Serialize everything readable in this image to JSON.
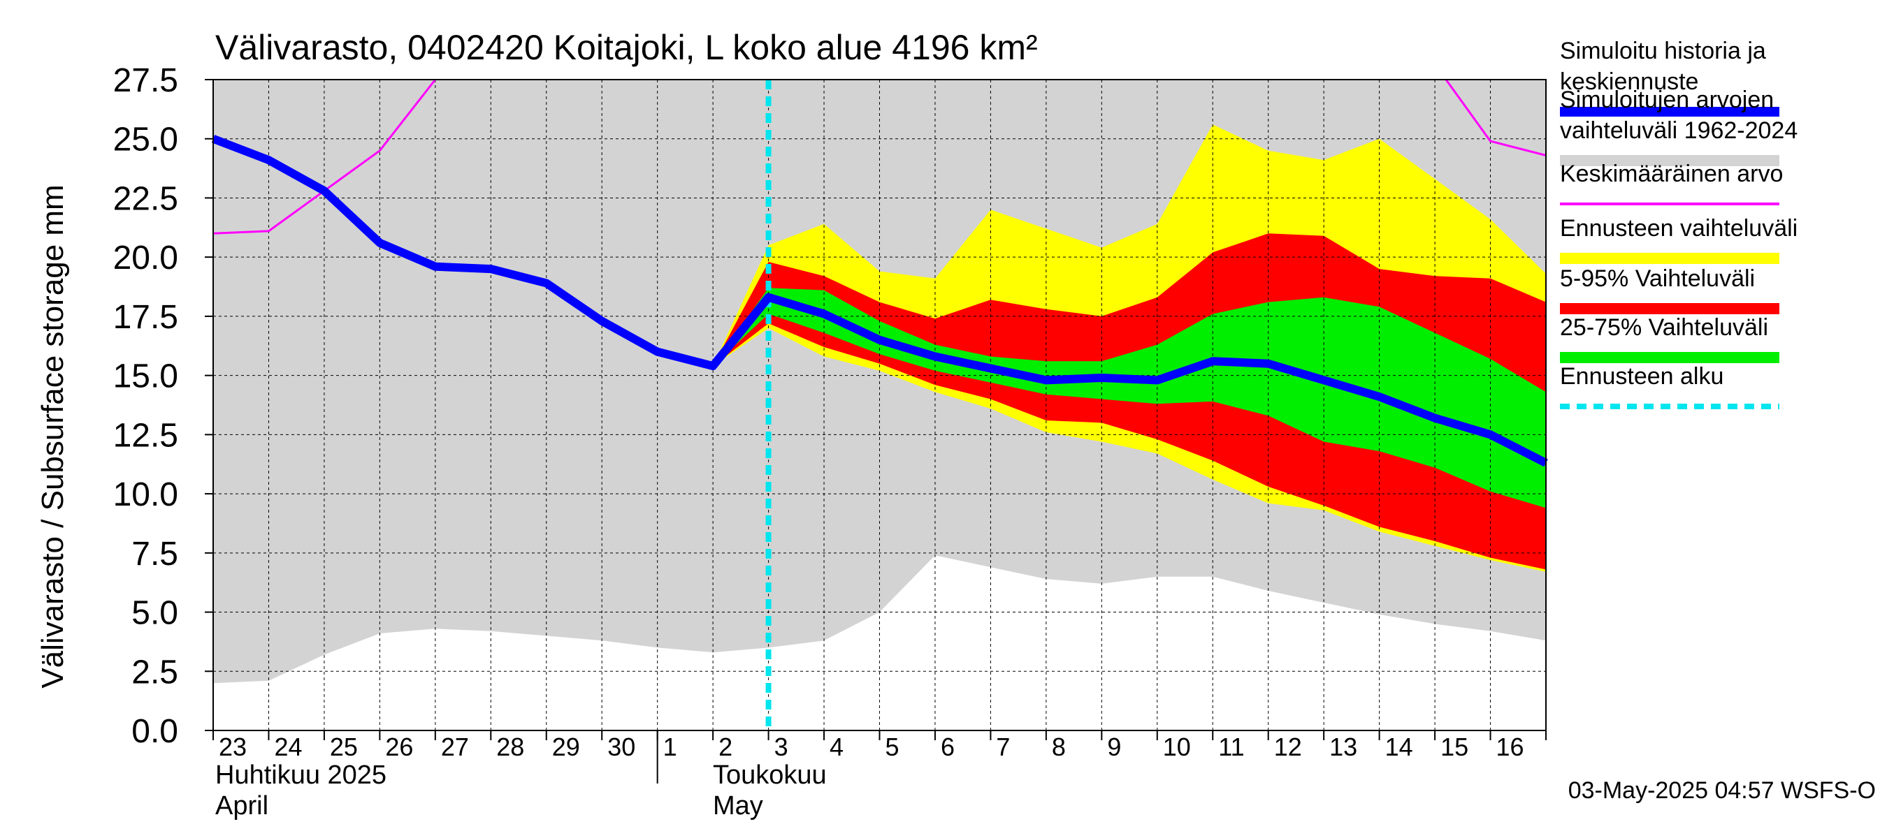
{
  "chart_data": {
    "type": "area",
    "title": "Välivarasto, 0402420 Koitajoki, L koko alue 4196 km²",
    "ylabel": "Välivarasto / Subsurface storage  mm",
    "ylim": [
      0,
      27.5
    ],
    "yticks": [
      "0.0",
      "2.5",
      "5.0",
      "7.5",
      "10.0",
      "12.5",
      "15.0",
      "17.5",
      "20.0",
      "22.5",
      "25.0",
      "27.5"
    ],
    "xlim": [
      0,
      24
    ],
    "x_tick_labels": [
      "23",
      "24",
      "25",
      "26",
      "27",
      "28",
      "29",
      "30",
      "1",
      "2",
      "3",
      "4",
      "5",
      "6",
      "7",
      "8",
      "9",
      "10",
      "11",
      "12",
      "13",
      "14",
      "15",
      "16"
    ],
    "month_labels": [
      {
        "fi": "Huhtikuu  2025",
        "en": "April"
      },
      {
        "fi": "Toukokuu",
        "en": "May"
      }
    ],
    "timestamp": "03-May-2025 04:57 WSFS-O",
    "grid": true,
    "forecast_start_x": 10,
    "hist_band": {
      "x": [
        0,
        1,
        2,
        3,
        4,
        5,
        6,
        7,
        8,
        9,
        10,
        11,
        12,
        13,
        14,
        15,
        16,
        17,
        18,
        19,
        20,
        21,
        22,
        23,
        24
      ],
      "lower": [
        2.0,
        2.1,
        3.2,
        4.1,
        4.3,
        4.2,
        4.0,
        3.8,
        3.5,
        3.3,
        3.5,
        3.8,
        5.0,
        7.4,
        6.9,
        6.4,
        6.2,
        6.5,
        6.5,
        5.9,
        5.4,
        4.9,
        4.5,
        4.2,
        3.8
      ],
      "upper": [
        27.5,
        27.5,
        27.5,
        27.5,
        27.5,
        27.5,
        27.5,
        27.5,
        27.5,
        27.5,
        27.5,
        27.5,
        27.5,
        27.5,
        27.5,
        27.5,
        27.5,
        27.5,
        27.5,
        27.5,
        27.5,
        27.5,
        27.5,
        27.5,
        27.5
      ]
    },
    "forecast_x": [
      9,
      10,
      11,
      12,
      13,
      14,
      15,
      16,
      17,
      18,
      19,
      20,
      21,
      22,
      23,
      24
    ],
    "ennuste_band": {
      "lower": [
        15.4,
        17.0,
        15.8,
        15.2,
        14.3,
        13.6,
        12.6,
        12.2,
        11.7,
        10.6,
        9.6,
        9.3,
        8.4,
        7.8,
        7.2,
        6.7
      ],
      "upper": [
        15.4,
        20.5,
        21.4,
        19.4,
        19.1,
        22.0,
        21.2,
        20.4,
        21.4,
        25.6,
        24.5,
        24.1,
        25.0,
        23.3,
        21.6,
        19.3
      ]
    },
    "p5_95_band": {
      "lower": [
        15.4,
        17.2,
        16.2,
        15.5,
        14.6,
        14.0,
        13.1,
        13.0,
        12.3,
        11.4,
        10.3,
        9.5,
        8.6,
        8.0,
        7.3,
        6.8
      ],
      "upper": [
        15.4,
        19.8,
        19.2,
        18.1,
        17.4,
        18.2,
        17.8,
        17.5,
        18.3,
        20.2,
        21.0,
        20.9,
        19.5,
        19.2,
        19.1,
        18.1
      ]
    },
    "p25_75_band": {
      "lower": [
        15.4,
        17.6,
        16.8,
        15.9,
        15.2,
        14.7,
        14.2,
        14.0,
        13.8,
        13.9,
        13.3,
        12.2,
        11.8,
        11.1,
        10.1,
        9.4
      ],
      "upper": [
        15.4,
        18.7,
        18.6,
        17.3,
        16.3,
        15.8,
        15.6,
        15.6,
        16.3,
        17.6,
        18.1,
        18.3,
        17.9,
        16.8,
        15.7,
        14.3
      ]
    },
    "series": [
      {
        "name": "Simuloitu historia ja keskiennuste",
        "color": "#0000ff",
        "x": [
          0,
          1,
          2,
          3,
          4,
          5,
          6,
          7,
          8,
          9,
          10,
          11,
          12,
          13,
          14,
          15,
          16,
          17,
          18,
          19,
          20,
          21,
          22,
          23,
          24
        ],
        "y": [
          25.0,
          24.1,
          22.8,
          20.6,
          19.6,
          19.5,
          18.9,
          17.3,
          16.0,
          15.4,
          18.3,
          17.6,
          16.5,
          15.8,
          15.3,
          14.8,
          14.9,
          14.8,
          15.6,
          15.5,
          14.8,
          14.1,
          13.2,
          12.5,
          11.3
        ]
      },
      {
        "name": "Keskimääräinen arvo",
        "color": "#ff00ff",
        "segments": [
          {
            "x": [
              0,
              1,
              2,
              3,
              4
            ],
            "y": [
              21.0,
              21.1,
              22.8,
              24.5,
              27.5
            ]
          },
          {
            "x": [
              22.2,
              23,
              24
            ],
            "y": [
              27.5,
              24.9,
              24.3
            ]
          }
        ]
      }
    ],
    "legend": {
      "placement": "right",
      "items": [
        {
          "label": "Simuloitu historia ja keskiennuste",
          "color": "#0000ff",
          "style": "line-thick"
        },
        {
          "label": "Simuloitujen arvojen vaihteluväli 1962-2024",
          "color": "#d3d3d3",
          "style": "band"
        },
        {
          "label": "Keskimääräinen arvo",
          "color": "#ff00ff",
          "style": "line-thin"
        },
        {
          "label": "Ennusteen vaihteluväli",
          "color": "#ffff00",
          "style": "band"
        },
        {
          "label": "5-95% Vaihteluväli",
          "color": "#ff0000",
          "style": "band"
        },
        {
          "label": "25-75% Vaihteluväli",
          "color": "#00ee00",
          "style": "band"
        },
        {
          "label": "Ennusteen alku",
          "color": "#00e5ee",
          "style": "dashed"
        }
      ]
    },
    "colors": {
      "hist_band": "#d3d3d3",
      "ennuste_band": "#ffff00",
      "p5_95_band": "#ff0000",
      "p25_75_band": "#00ee00",
      "forecast_start": "#00e5ee",
      "grid": "#000000"
    }
  }
}
